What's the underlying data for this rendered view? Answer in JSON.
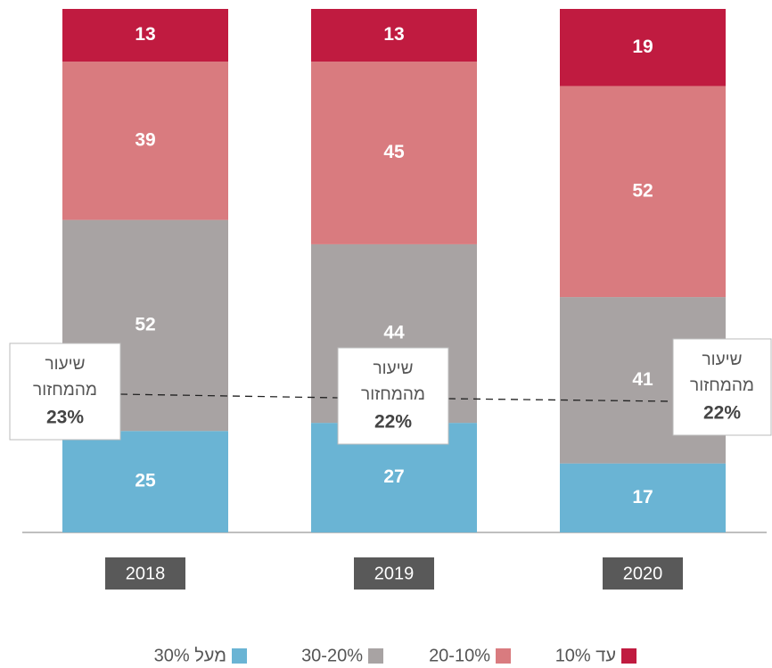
{
  "chart_data": {
    "type": "stacked-bar",
    "categories": [
      "2018",
      "2019",
      "2020"
    ],
    "series": [
      {
        "name": "מעל 30%",
        "color": "#6ab4d4",
        "values": [
          25,
          27,
          17
        ]
      },
      {
        "name": "30-20%",
        "color": "#a8a3a3",
        "values": [
          52,
          44,
          41
        ]
      },
      {
        "name": "20-10%",
        "color": "#d97b7f",
        "values": [
          39,
          45,
          52
        ]
      },
      {
        "name": "עד 10%",
        "color": "#c01b40",
        "values": [
          13,
          13,
          19
        ]
      }
    ],
    "ylim": [
      0,
      129
    ],
    "annotations": [
      {
        "lines": [
          "שיעור",
          "מהמחזור"
        ],
        "value": "23%"
      },
      {
        "lines": [
          "שיעור",
          "מהמחזור"
        ],
        "value": "22%"
      },
      {
        "lines": [
          "שיעור",
          "מהמחזור"
        ],
        "value": "22%"
      }
    ]
  }
}
